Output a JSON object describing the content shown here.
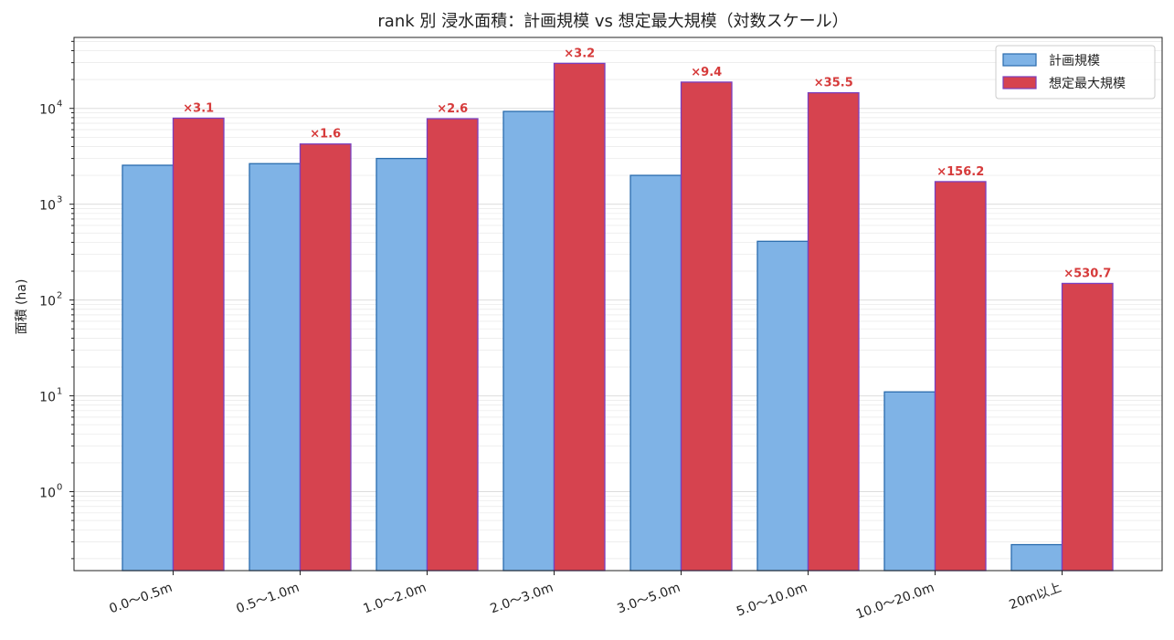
{
  "chart_data": {
    "type": "bar",
    "title": "rank 別 浸水面積：計画規模 vs 想定最大規模（対数スケール）",
    "xlabel": "",
    "ylabel": "面積 (ha)",
    "yscale": "log",
    "ylim": [
      0.15,
      55000
    ],
    "yticks": [
      {
        "base": "10",
        "exp": "0"
      },
      {
        "base": "10",
        "exp": "1"
      },
      {
        "base": "10",
        "exp": "2"
      },
      {
        "base": "10",
        "exp": "3"
      },
      {
        "base": "10",
        "exp": "4"
      }
    ],
    "categories": [
      "0.0〜0.5m",
      "0.5〜1.0m",
      "1.0〜2.0m",
      "2.0〜3.0m",
      "3.0〜5.0m",
      "5.0〜10.0m",
      "10.0〜20.0m",
      "20m以上"
    ],
    "series": [
      {
        "name": "計画規模",
        "values": [
          2550,
          2650,
          3000,
          9300,
          2000,
          410,
          11,
          0.28
        ],
        "color": "#7fb3e6",
        "edge": "#2a6cad"
      },
      {
        "name": "想定最大規模",
        "values": [
          7900,
          4250,
          7800,
          29500,
          18800,
          14550,
          1720,
          149
        ],
        "color": "#d6434f",
        "edge": "#7a3fbf"
      }
    ],
    "ratio_labels": [
      "×3.1",
      "×1.6",
      "×2.6",
      "×3.2",
      "×9.4",
      "×35.5",
      "×156.2",
      "×530.7"
    ],
    "ratio_label_color": "#d63a3a",
    "grid": true,
    "legend_position": "top-right"
  }
}
